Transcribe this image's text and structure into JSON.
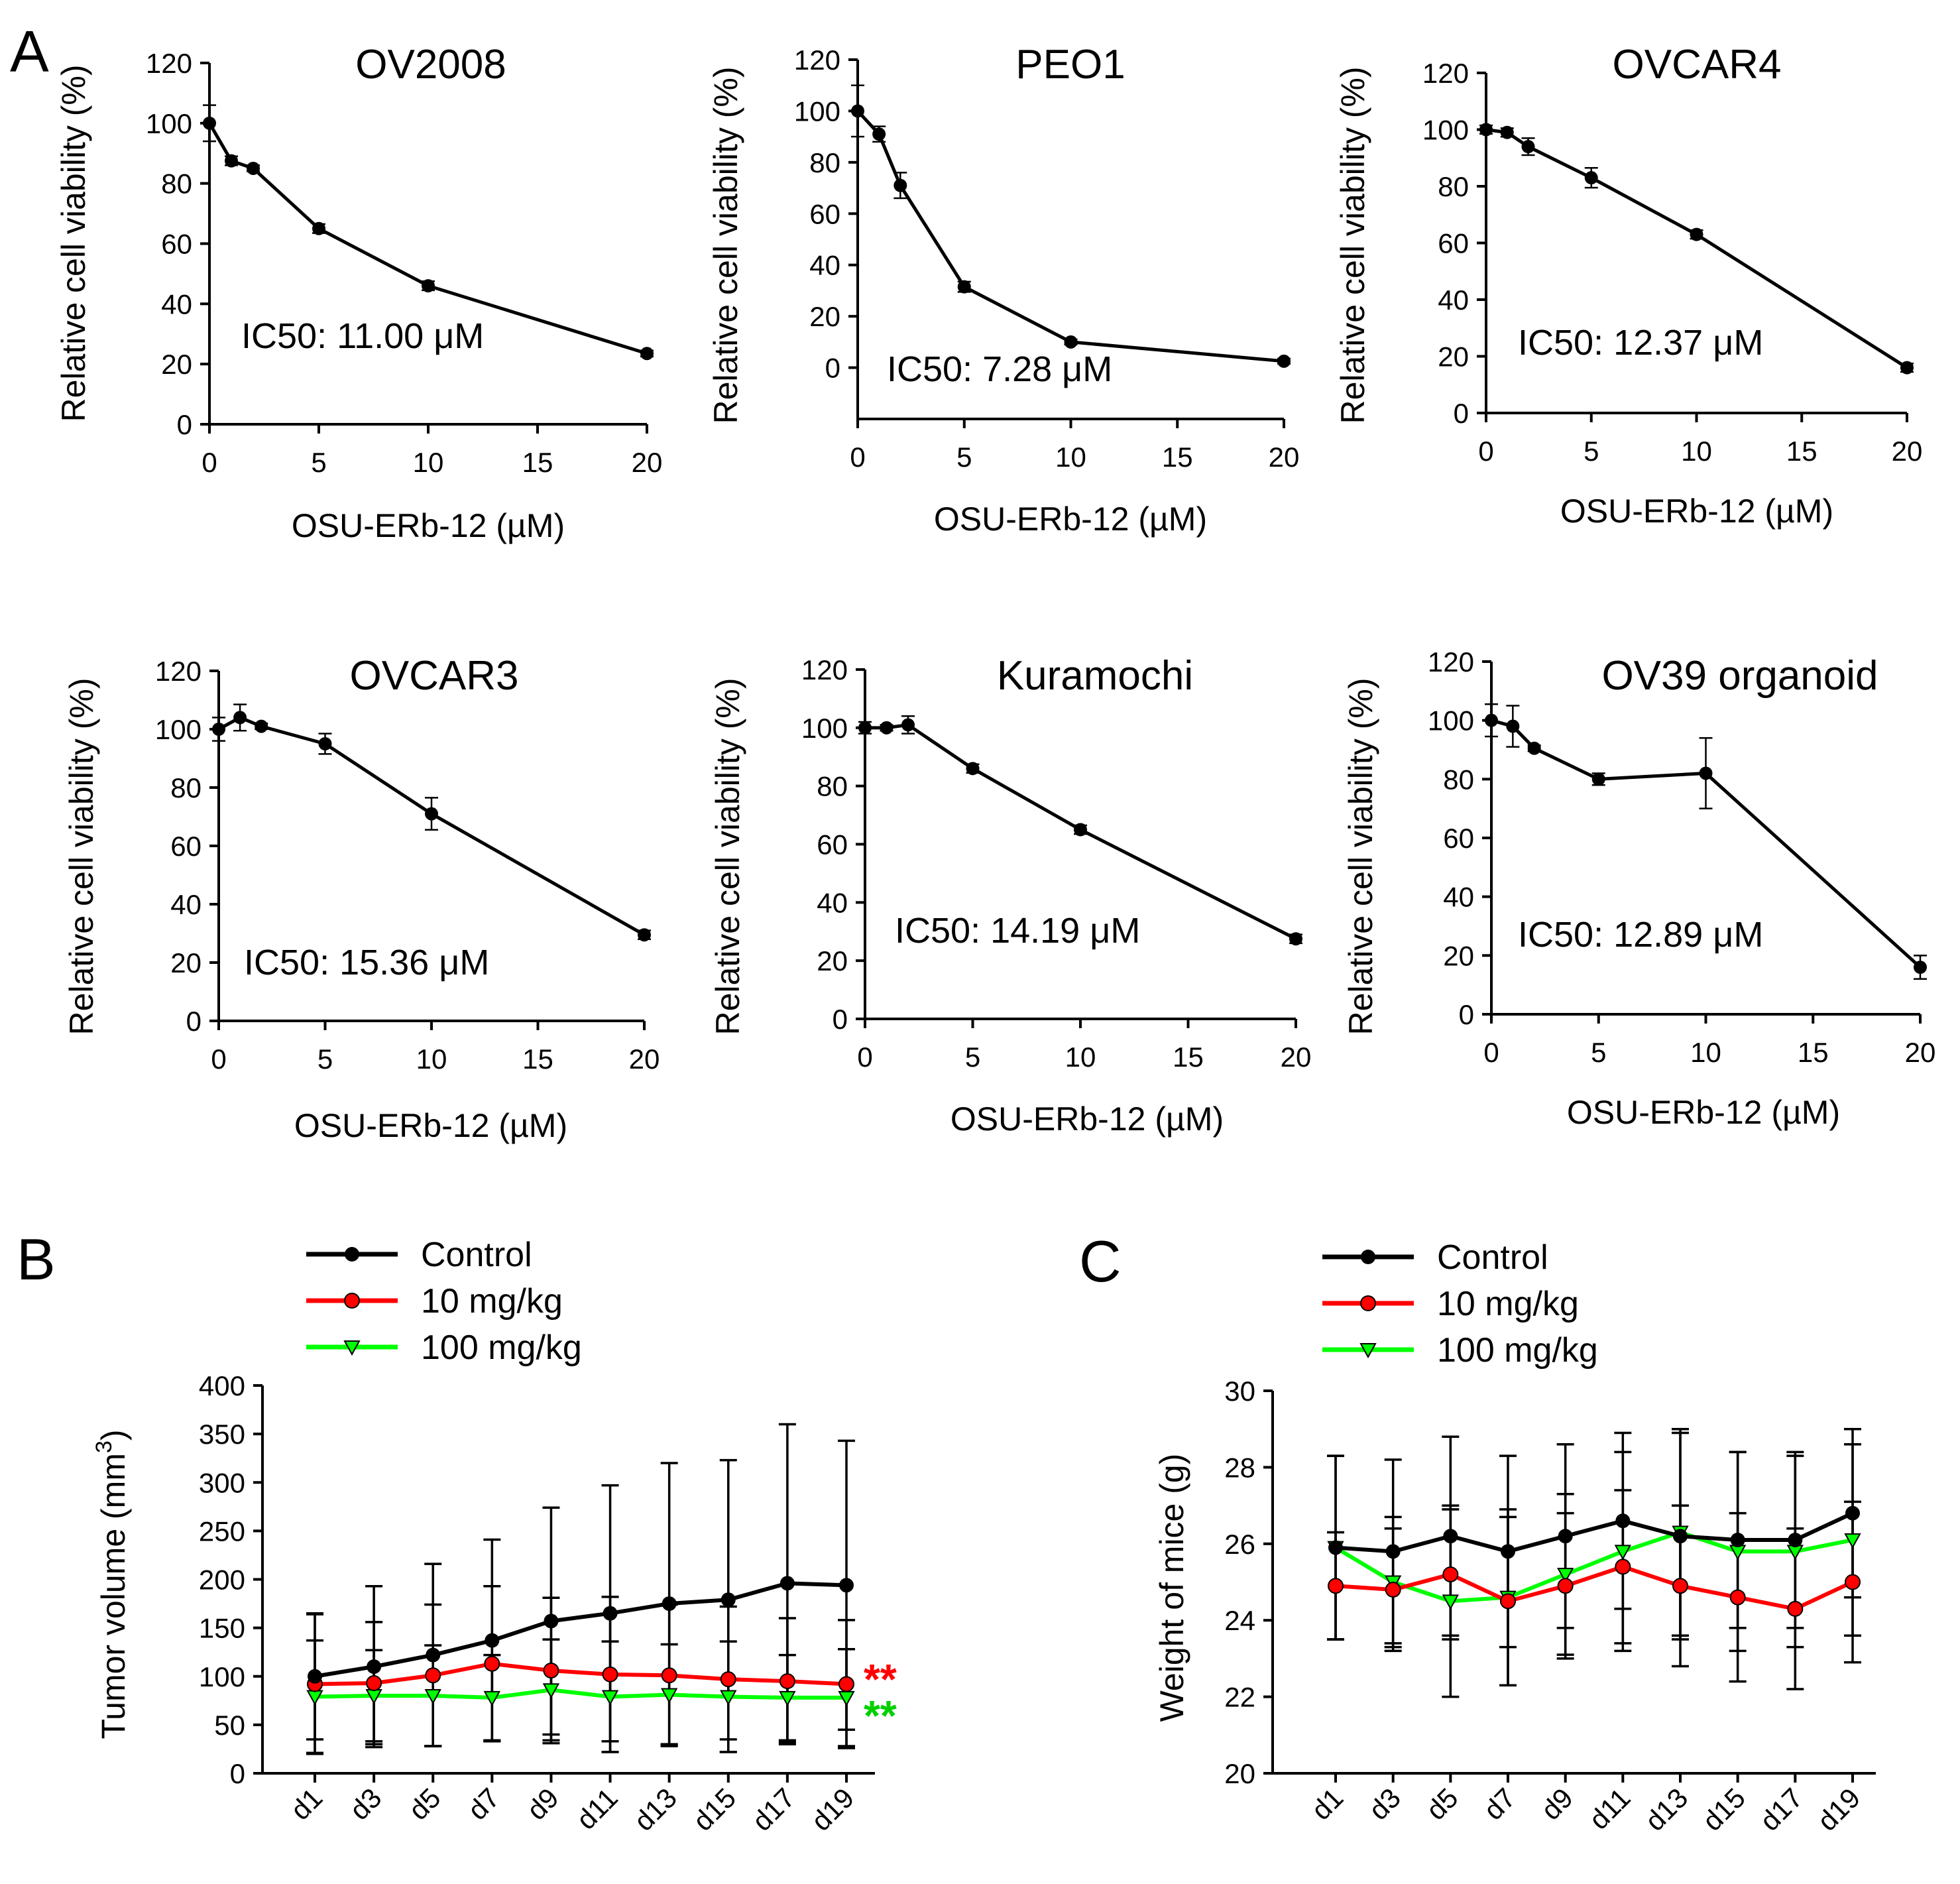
{
  "panels": {
    "A": "A",
    "B": "B",
    "C": "C"
  },
  "chart_data": [
    {
      "type": "line",
      "id": "ov2008",
      "title": "OV2008",
      "xlabel": "OSU-ERb-12 (µM)",
      "ylabel": "Relative cell viability (%)",
      "xlim": [
        0,
        20
      ],
      "ylim": [
        0,
        120
      ],
      "xticks": [
        0,
        5,
        10,
        15,
        20
      ],
      "yticks": [
        0,
        20,
        40,
        60,
        80,
        100,
        120
      ],
      "x": [
        0,
        1,
        2,
        5,
        10,
        20
      ],
      "series": [
        {
          "name": "OV2008",
          "values": [
            100,
            87.5,
            85,
            65,
            46,
            23.5
          ],
          "errors": [
            6,
            1.5,
            1,
            1.5,
            1.5,
            1
          ]
        }
      ],
      "annotation": "IC50: 11.00 μM"
    },
    {
      "type": "line",
      "id": "peo1",
      "title": "PEO1",
      "xlabel": "OSU-ERb-12 (µM)",
      "ylabel": "Relative cell viability (%)",
      "xlim": [
        0,
        20
      ],
      "ylim": [
        -20,
        120
      ],
      "xticks": [
        0,
        5,
        10,
        15,
        20
      ],
      "yticks": [
        0,
        20,
        40,
        60,
        80,
        100,
        120
      ],
      "x": [
        0,
        1,
        2,
        5,
        10,
        20
      ],
      "series": [
        {
          "name": "PEO1",
          "values": [
            100,
            91,
            71,
            31.5,
            10,
            2.5
          ],
          "errors": [
            10,
            3,
            5,
            2,
            1,
            1
          ]
        }
      ],
      "annotation": "IC50: 7.28 μM"
    },
    {
      "type": "line",
      "id": "ovcar4",
      "title": "OVCAR4",
      "xlabel": "OSU-ERb-12 (µM)",
      "ylabel": "Relative cell viability (%)",
      "xlim": [
        0,
        20
      ],
      "ylim": [
        0,
        120
      ],
      "xticks": [
        0,
        5,
        10,
        15,
        20
      ],
      "yticks": [
        0,
        20,
        40,
        60,
        80,
        100,
        120
      ],
      "x": [
        0,
        1,
        2,
        5,
        10,
        20
      ],
      "series": [
        {
          "name": "OVCAR4",
          "values": [
            100,
            99,
            94,
            83,
            63,
            16
          ],
          "errors": [
            1.5,
            1.5,
            3,
            3.5,
            1.5,
            1.5
          ]
        }
      ],
      "annotation": "IC50: 12.37 μM"
    },
    {
      "type": "line",
      "id": "ovcar3",
      "title": "OVCAR3",
      "xlabel": "OSU-ERb-12 (µM)",
      "ylabel": "Relative cell viability (%)",
      "xlim": [
        0,
        20
      ],
      "ylim": [
        0,
        120
      ],
      "xticks": [
        0,
        5,
        10,
        15,
        20
      ],
      "yticks": [
        0,
        20,
        40,
        60,
        80,
        100,
        120
      ],
      "x": [
        0,
        1,
        2,
        5,
        10,
        20
      ],
      "series": [
        {
          "name": "OVCAR3",
          "values": [
            100,
            104,
            101,
            95,
            71,
            29.5
          ],
          "errors": [
            4,
            4.5,
            1,
            3.5,
            5.5,
            1.5
          ]
        }
      ],
      "annotation": "IC50: 15.36 μM"
    },
    {
      "type": "line",
      "id": "kuramochi",
      "title": "Kuramochi",
      "xlabel": "OSU-ERb-12 (µM)",
      "ylabel": "Relative cell viability (%)",
      "xlim": [
        0,
        20
      ],
      "ylim": [
        0,
        120
      ],
      "xticks": [
        0,
        5,
        10,
        15,
        20
      ],
      "yticks": [
        0,
        20,
        40,
        60,
        80,
        100,
        120
      ],
      "x": [
        0,
        1,
        2,
        5,
        10,
        20
      ],
      "series": [
        {
          "name": "Kuramochi",
          "values": [
            100,
            100,
            101,
            86,
            65,
            27.5
          ],
          "errors": [
            2,
            1,
            3,
            1.5,
            1.5,
            1.5
          ]
        }
      ],
      "annotation": "IC50: 14.19 μM"
    },
    {
      "type": "line",
      "id": "ov39",
      "title": "OV39 organoid",
      "xlabel": "OSU-ERb-12 (µM)",
      "ylabel": "Relative cell viability (%)",
      "xlim": [
        0,
        20
      ],
      "ylim": [
        0,
        120
      ],
      "xticks": [
        0,
        5,
        10,
        15,
        20
      ],
      "yticks": [
        0,
        20,
        40,
        60,
        80,
        100,
        120
      ],
      "x": [
        0,
        1,
        2,
        5,
        10,
        20
      ],
      "series": [
        {
          "name": "OV39 organoid",
          "values": [
            100,
            98,
            90.5,
            80,
            82,
            16
          ],
          "errors": [
            5.5,
            7,
            1,
            2,
            12,
            4
          ]
        }
      ],
      "annotation": "IC50: 12.89 μM"
    },
    {
      "type": "line",
      "id": "tumor",
      "title": "",
      "xlabel": "",
      "ylabel": "Tumor volume (mm",
      "ylabel_sup": "3",
      "ylabel_end": ")",
      "ylim": [
        0,
        400
      ],
      "yticks": [
        0,
        50,
        100,
        150,
        200,
        250,
        300,
        350,
        400
      ],
      "categories": [
        "d1",
        "d3",
        "d5",
        "d7",
        "d9",
        "d11",
        "d13",
        "d15",
        "d17",
        "d19"
      ],
      "series": [
        {
          "name": "Control",
          "color": "#000000",
          "marker": "circle",
          "values": [
            100,
            110,
            122,
            137,
            157,
            165,
            175,
            179,
            196,
            194
          ],
          "errors": [
            65,
            83,
            94,
            104,
            117,
            132,
            145,
            144,
            164,
            149
          ]
        },
        {
          "name": "10 mg/kg",
          "color": "#ff0000",
          "marker": "circle",
          "values": [
            92,
            93,
            101,
            113,
            106,
            102,
            101,
            97,
            95,
            92
          ],
          "errors": [
            72,
            63,
            73,
            80,
            75,
            80,
            73,
            75,
            65,
            66
          ]
        },
        {
          "name": "100 mg/kg",
          "color": "#00ff00",
          "marker": "triangle-down",
          "values": [
            79,
            80,
            80,
            78,
            86,
            79,
            81,
            79,
            78,
            78
          ],
          "errors": [
            58,
            47,
            52,
            44,
            52,
            57,
            52,
            57,
            44,
            50
          ]
        }
      ],
      "significance": [
        {
          "text": "**",
          "color": "#ff0000"
        },
        {
          "text": "**",
          "color": "#00d000"
        }
      ]
    },
    {
      "type": "line",
      "id": "weight",
      "title": "",
      "xlabel": "",
      "ylabel": "Weight of mice (g)",
      "ylim": [
        20,
        30
      ],
      "yticks": [
        20,
        22,
        24,
        26,
        28,
        30
      ],
      "categories": [
        "d1",
        "d3",
        "d5",
        "d7",
        "d9",
        "d11",
        "d13",
        "d15",
        "d17",
        "d19"
      ],
      "series": [
        {
          "name": "Control",
          "color": "#000000",
          "marker": "circle",
          "values": [
            25.9,
            25.8,
            26.2,
            25.8,
            26.2,
            26.6,
            26.2,
            26.1,
            26.1,
            26.8
          ],
          "errors": [
            2.4,
            2.4,
            2.6,
            2.5,
            2.4,
            2.3,
            2.7,
            2.3,
            2.3,
            2.2
          ]
        },
        {
          "name": "10 mg/kg",
          "color": "#ff0000",
          "marker": "circle",
          "values": [
            24.9,
            24.8,
            25.2,
            24.5,
            24.9,
            25.4,
            24.9,
            24.6,
            24.3,
            25.0
          ],
          "errors": [
            1.4,
            1.6,
            1.7,
            2.2,
            1.9,
            2.0,
            2.1,
            2.2,
            2.1,
            2.1
          ]
        },
        {
          "name": "100 mg/kg",
          "color": "#00ff00",
          "marker": "triangle-down",
          "values": [
            25.9,
            25.0,
            24.5,
            24.6,
            25.2,
            25.8,
            26.3,
            25.8,
            25.8,
            26.1
          ],
          "errors": [
            2.4,
            1.7,
            2.5,
            2.3,
            2.1,
            2.6,
            2.7,
            2.6,
            2.5,
            2.5
          ]
        }
      ],
      "significance": []
    }
  ]
}
